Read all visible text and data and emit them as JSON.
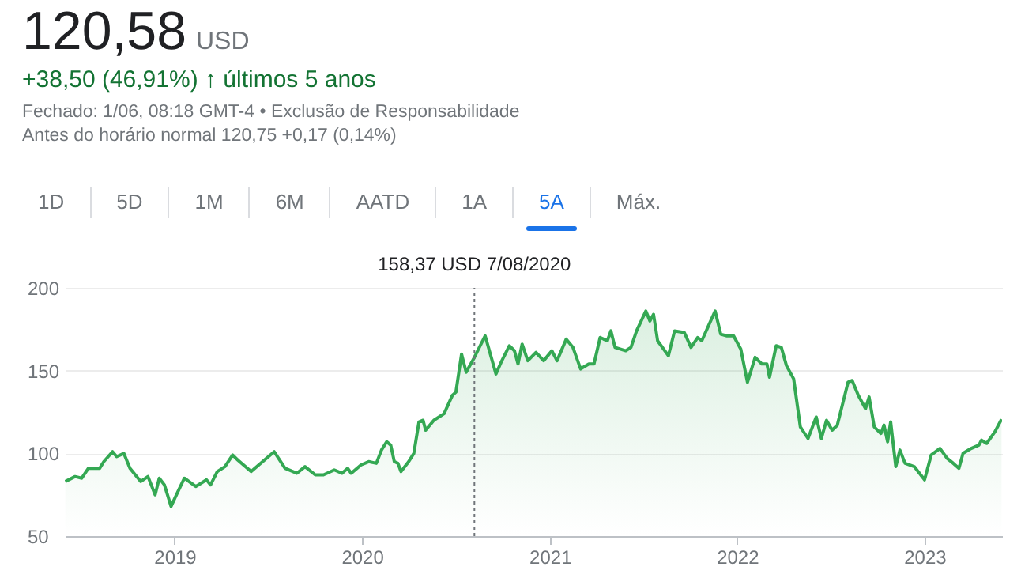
{
  "chart_data": {
    "type": "area",
    "title": "120,58",
    "subtitle": "USD",
    "annotations": [
      "+38,50 (46,91%) ↑ últimos 5 anos",
      "Fechado: 1/06, 08:18 GMT-4 • Exclusão de Responsabilidade",
      "Antes do horário normal 120,75 +0,17 (0,14%)",
      "1D",
      "5D",
      "1M",
      "6M",
      "AATD",
      "1A",
      "5A",
      "Máx.",
      "158,37 USD  7/08/2020"
    ],
    "x": [
      "2018-06-02",
      "2018-06-21",
      "2018-07-04",
      "2018-07-17",
      "2018-08-08",
      "2018-08-16",
      "2018-09-02",
      "2018-09-10",
      "2018-09-24",
      "2018-10-06",
      "2018-10-27",
      "2018-11-10",
      "2018-11-24",
      "2018-12-02",
      "2018-12-12",
      "2018-12-25",
      "2019-01-06",
      "2019-01-20",
      "2019-02-11",
      "2019-03-04",
      "2019-03-12",
      "2019-03-25",
      "2019-04-09",
      "2019-04-24",
      "2019-05-04",
      "2019-05-30",
      "2019-06-25",
      "2019-07-14",
      "2019-08-04",
      "2019-08-27",
      "2019-09-12",
      "2019-10-02",
      "2019-10-18",
      "2019-11-08",
      "2019-11-23",
      "2019-12-04",
      "2019-12-11",
      "2019-12-30",
      "2020-01-14",
      "2020-01-29",
      "2020-02-08",
      "2020-02-18",
      "2020-02-26",
      "2020-03-04",
      "2020-03-11",
      "2020-03-17",
      "2020-04-01",
      "2020-04-11",
      "2020-04-21",
      "2020-04-29",
      "2020-05-04",
      "2020-05-20",
      "2020-06-09",
      "2020-06-25",
      "2020-07-02",
      "2020-07-13",
      "2020-07-22",
      "2020-08-07",
      "2020-08-28",
      "2020-09-18",
      "2020-09-28",
      "2020-10-14",
      "2020-10-24",
      "2020-10-31",
      "2020-11-08",
      "2020-11-19",
      "2020-12-05",
      "2020-12-20",
      "2021-01-05",
      "2021-01-15",
      "2021-02-02",
      "2021-02-15",
      "2021-03-02",
      "2021-03-18",
      "2021-03-28",
      "2021-04-09",
      "2021-04-23",
      "2021-04-30",
      "2021-05-08",
      "2021-05-29",
      "2021-06-08",
      "2021-06-19",
      "2021-07-07",
      "2021-07-15",
      "2021-07-22",
      "2021-07-30",
      "2021-08-20",
      "2021-09-01",
      "2021-09-20",
      "2021-10-03",
      "2021-10-16",
      "2021-10-24",
      "2021-11-06",
      "2021-11-19",
      "2021-11-30",
      "2021-12-12",
      "2021-12-25",
      "2022-01-08",
      "2022-01-21",
      "2022-02-05",
      "2022-02-18",
      "2022-02-28",
      "2022-03-05",
      "2022-03-18",
      "2022-03-28",
      "2022-04-07",
      "2022-04-21",
      "2022-05-04",
      "2022-05-19",
      "2022-06-04",
      "2022-06-14",
      "2022-06-24",
      "2022-07-05",
      "2022-07-15",
      "2022-08-05",
      "2022-08-13",
      "2022-08-25",
      "2022-09-08",
      "2022-09-15",
      "2022-09-25",
      "2022-10-08",
      "2022-10-14",
      "2022-10-21",
      "2022-10-27",
      "2022-11-06",
      "2022-11-14",
      "2022-11-24",
      "2022-12-12",
      "2023-01-01",
      "2023-01-14",
      "2023-01-31",
      "2023-02-14",
      "2023-02-26",
      "2023-03-09",
      "2023-03-17",
      "2023-04-02",
      "2023-04-17",
      "2023-04-22",
      "2023-05-02",
      "2023-05-18",
      "2023-05-31"
    ],
    "series": [
      {
        "color": "#34a853",
        "values": [
          83,
          86,
          85,
          91,
          91,
          95,
          101,
          98,
          100,
          91,
          83,
          86,
          75,
          85,
          81,
          68,
          76,
          85,
          80,
          84,
          81,
          89,
          92,
          99,
          96,
          89,
          96,
          101,
          91,
          88,
          92,
          87,
          87,
          90,
          88,
          91,
          88,
          93,
          95,
          94,
          102,
          107,
          105,
          95,
          94,
          89,
          95,
          100,
          119,
          120,
          114,
          120,
          124,
          135,
          137,
          160,
          149,
          158,
          171,
          148,
          155,
          165,
          162,
          154,
          166,
          156,
          161,
          156,
          162,
          156,
          169,
          164,
          151,
          154,
          154,
          170,
          168,
          174,
          164,
          162,
          164,
          174,
          186,
          180,
          184,
          168,
          159,
          174,
          173,
          164,
          170,
          168,
          177,
          186,
          172,
          171,
          171,
          163,
          143,
          158,
          154,
          154,
          146,
          165,
          164,
          153,
          145,
          116,
          109,
          122,
          109,
          120,
          114,
          117,
          143,
          144,
          135,
          127,
          134,
          116,
          112,
          117,
          107,
          119,
          92,
          102,
          94,
          92,
          84,
          99,
          103,
          97,
          94,
          91,
          100,
          103,
          105,
          108,
          106,
          113,
          120.58
        ]
      }
    ],
    "xlim": [
      "2018-06-01",
      "2023-06-01"
    ],
    "xticks": [
      {
        "value": "2019",
        "label": "2019"
      },
      {
        "value": "2020",
        "label": "2020"
      },
      {
        "value": "2021",
        "label": "2021"
      },
      {
        "value": "2022",
        "label": "2022"
      },
      {
        "value": "2023",
        "label": "2023"
      }
    ],
    "ylim": [
      50,
      200
    ],
    "yticks": [
      50,
      100,
      150,
      200
    ],
    "grid": "y",
    "ref_lines": [
      {
        "axis": "x",
        "value": "2020-08-07",
        "label": null,
        "line_style": "dotted"
      }
    ]
  }
}
